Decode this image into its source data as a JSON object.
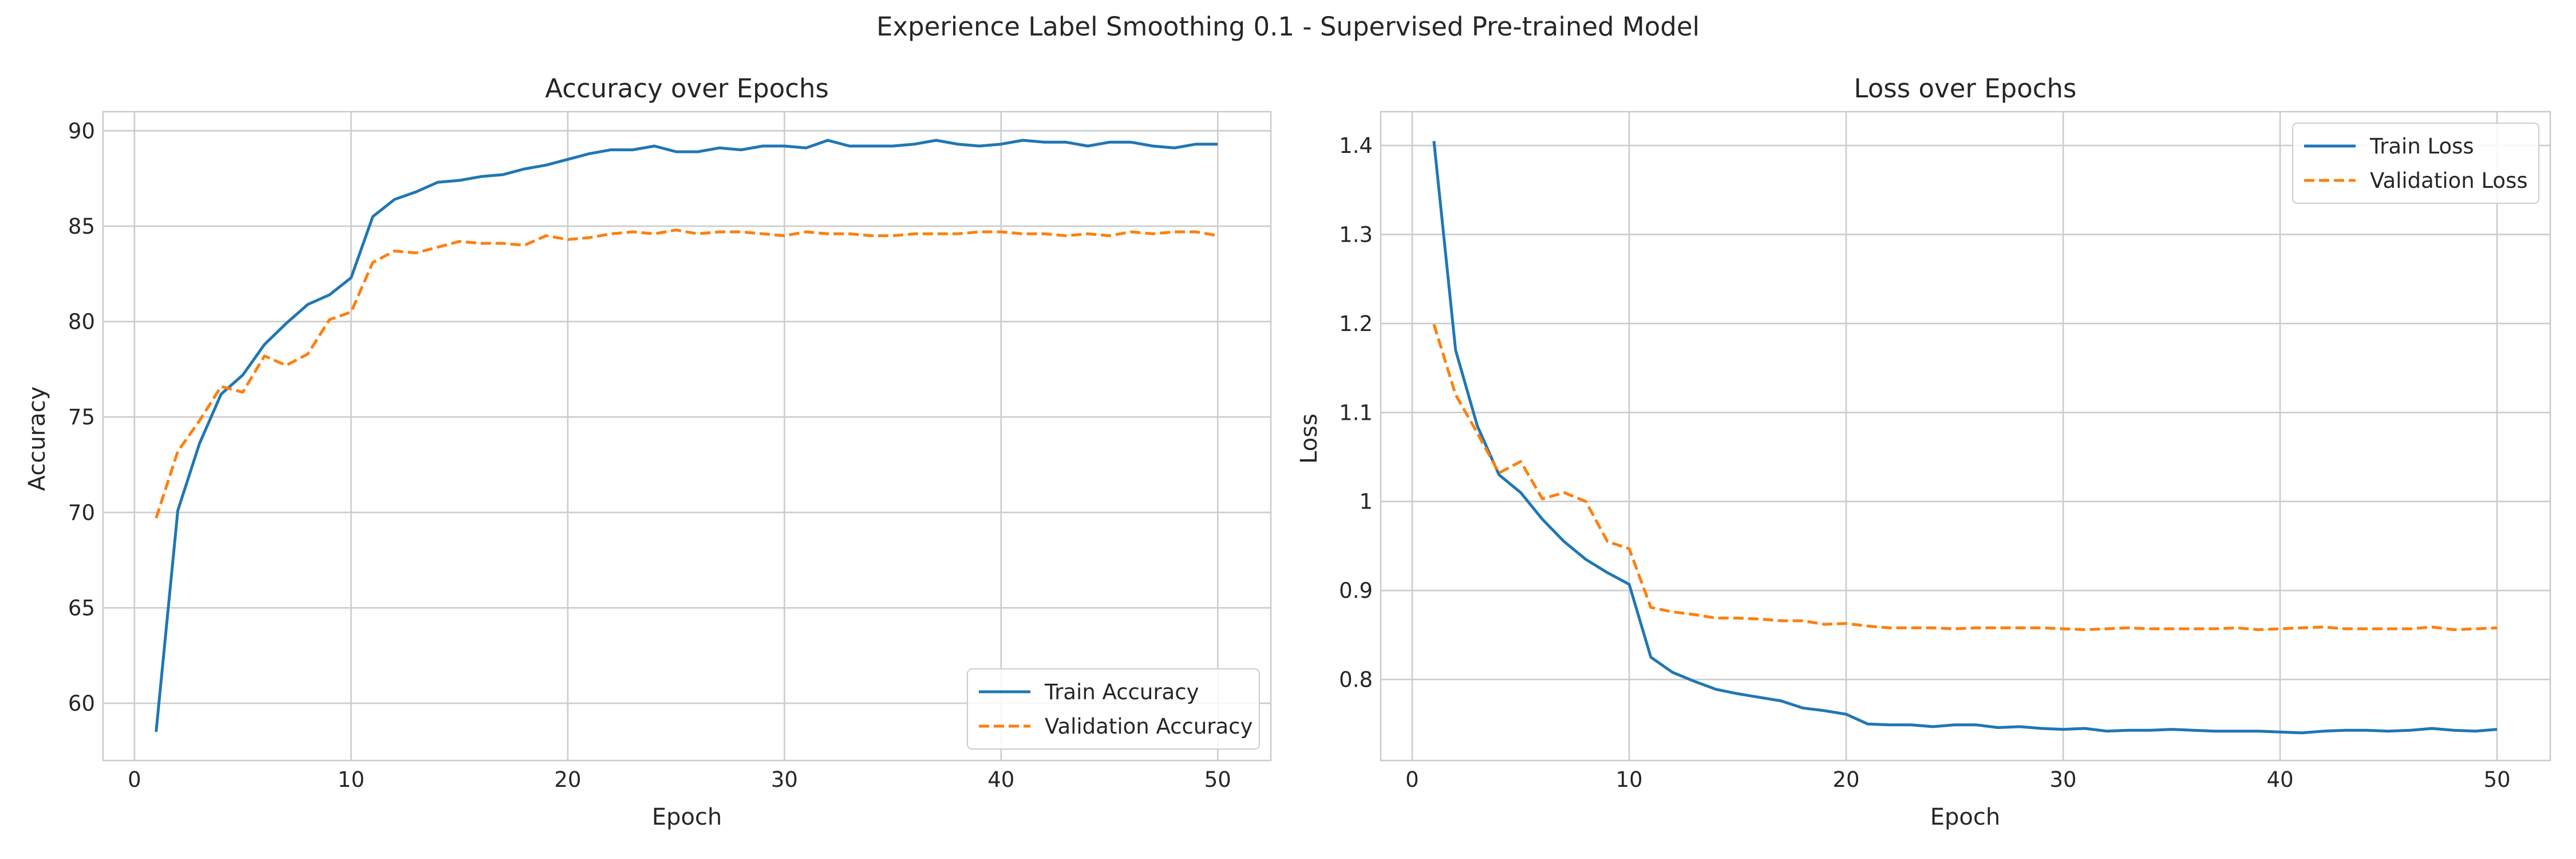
{
  "figure": {
    "suptitle": "Experience Label Smoothing 0.1 - Supervised Pre-trained Model"
  },
  "colors": {
    "train": "#1f77b4",
    "validation": "#ff7f0e",
    "grid": "#cccccc"
  },
  "chart_data": [
    {
      "type": "line",
      "title": "Accuracy over Epochs",
      "xlabel": "Epoch",
      "ylabel": "Accuracy",
      "xlim": [
        -1.45,
        52.45
      ],
      "ylim": [
        57.0,
        91.0
      ],
      "xticks": [
        0,
        10,
        20,
        30,
        40,
        50
      ],
      "yticks": [
        60,
        65,
        70,
        75,
        80,
        85,
        90
      ],
      "grid": true,
      "legend_position": "lower-right",
      "x": [
        1,
        2,
        3,
        4,
        5,
        6,
        7,
        8,
        9,
        10,
        11,
        12,
        13,
        14,
        15,
        16,
        17,
        18,
        19,
        20,
        21,
        22,
        23,
        24,
        25,
        26,
        27,
        28,
        29,
        30,
        31,
        32,
        33,
        34,
        35,
        36,
        37,
        38,
        39,
        40,
        41,
        42,
        43,
        44,
        45,
        46,
        47,
        48,
        49,
        50
      ],
      "series": [
        {
          "name": "Train Accuracy",
          "color": "#1f77b4",
          "style": "solid",
          "values": [
            58.5,
            70.1,
            73.6,
            76.2,
            77.2,
            78.8,
            79.9,
            80.9,
            81.4,
            82.3,
            85.5,
            86.4,
            86.8,
            87.3,
            87.4,
            87.6,
            87.7,
            88.0,
            88.2,
            88.5,
            88.8,
            89.0,
            89.0,
            89.2,
            88.9,
            88.9,
            89.1,
            89.0,
            89.2,
            89.2,
            89.1,
            89.5,
            89.2,
            89.2,
            89.2,
            89.3,
            89.5,
            89.3,
            89.2,
            89.3,
            89.5,
            89.4,
            89.4,
            89.2,
            89.4,
            89.4,
            89.2,
            89.1,
            89.3,
            89.3
          ]
        },
        {
          "name": "Validation Accuracy",
          "color": "#ff7f0e",
          "style": "dashed",
          "values": [
            69.7,
            73.2,
            74.8,
            76.6,
            76.3,
            78.2,
            77.7,
            78.3,
            80.1,
            80.5,
            83.1,
            83.7,
            83.6,
            83.9,
            84.2,
            84.1,
            84.1,
            84.0,
            84.5,
            84.3,
            84.4,
            84.6,
            84.7,
            84.6,
            84.8,
            84.6,
            84.7,
            84.7,
            84.6,
            84.5,
            84.7,
            84.6,
            84.6,
            84.5,
            84.5,
            84.6,
            84.6,
            84.6,
            84.7,
            84.7,
            84.6,
            84.6,
            84.5,
            84.6,
            84.5,
            84.7,
            84.6,
            84.7,
            84.7,
            84.5
          ]
        }
      ]
    },
    {
      "type": "line",
      "title": "Loss over Epochs",
      "xlabel": "Epoch",
      "ylabel": "Loss",
      "xlim": [
        -1.45,
        52.45
      ],
      "ylim": [
        0.709,
        1.438
      ],
      "xticks": [
        0,
        10,
        20,
        30,
        40,
        50
      ],
      "yticks": [
        0.8,
        0.9,
        1.0,
        1.1,
        1.2,
        1.3,
        1.4
      ],
      "grid": true,
      "legend_position": "upper-right",
      "x": [
        1,
        2,
        3,
        4,
        5,
        6,
        7,
        8,
        9,
        10,
        11,
        12,
        13,
        14,
        15,
        16,
        17,
        18,
        19,
        20,
        21,
        22,
        23,
        24,
        25,
        26,
        27,
        28,
        29,
        30,
        31,
        32,
        33,
        34,
        35,
        36,
        37,
        38,
        39,
        40,
        41,
        42,
        43,
        44,
        45,
        46,
        47,
        48,
        49,
        50
      ],
      "series": [
        {
          "name": "Train Loss",
          "color": "#1f77b4",
          "style": "solid",
          "values": [
            1.405,
            1.17,
            1.085,
            1.03,
            1.01,
            0.98,
            0.955,
            0.935,
            0.92,
            0.907,
            0.825,
            0.808,
            0.798,
            0.789,
            0.784,
            0.78,
            0.776,
            0.768,
            0.765,
            0.761,
            0.75,
            0.749,
            0.749,
            0.747,
            0.749,
            0.749,
            0.746,
            0.747,
            0.745,
            0.744,
            0.745,
            0.742,
            0.743,
            0.743,
            0.744,
            0.743,
            0.742,
            0.742,
            0.742,
            0.741,
            0.74,
            0.742,
            0.743,
            0.743,
            0.742,
            0.743,
            0.745,
            0.743,
            0.742,
            0.744
          ]
        },
        {
          "name": "Validation Loss",
          "color": "#ff7f0e",
          "style": "dashed",
          "values": [
            1.199,
            1.12,
            1.077,
            1.032,
            1.045,
            1.003,
            1.01,
            1.0,
            0.955,
            0.947,
            0.881,
            0.876,
            0.873,
            0.869,
            0.869,
            0.868,
            0.866,
            0.866,
            0.862,
            0.863,
            0.86,
            0.858,
            0.858,
            0.858,
            0.857,
            0.858,
            0.858,
            0.858,
            0.858,
            0.857,
            0.856,
            0.857,
            0.858,
            0.857,
            0.857,
            0.857,
            0.857,
            0.858,
            0.856,
            0.857,
            0.858,
            0.859,
            0.857,
            0.857,
            0.857,
            0.857,
            0.859,
            0.856,
            0.857,
            0.858
          ]
        }
      ]
    }
  ]
}
